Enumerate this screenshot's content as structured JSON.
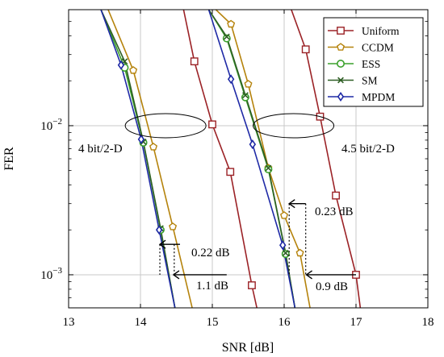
{
  "chart_data": {
    "type": "line",
    "xlabel": "SNR [dB]",
    "ylabel": "FER",
    "xlim": [
      13,
      18
    ],
    "ylim": [
      0.0006,
      0.06
    ],
    "yscale": "log",
    "grid": true,
    "legend_position": "top-right",
    "x_ticks": [
      "13",
      "14",
      "15",
      "16",
      "17",
      "18"
    ],
    "y_ticks": [
      {
        "value": 0.01,
        "base": "10",
        "exp": "−2"
      },
      {
        "value": 0.001,
        "base": "10",
        "exp": "−3"
      }
    ],
    "series": [
      {
        "name": "Uniform",
        "color": "#9b2226",
        "marker": "square",
        "segments": [
          [
            [
              14.6,
              0.06
            ],
            [
              14.75,
              0.027
            ],
            [
              15.0,
              0.0102
            ],
            [
              15.25,
              0.0049
            ],
            [
              15.55,
              0.00085
            ],
            [
              15.62,
              0.0006
            ]
          ],
          [
            [
              16.1,
              0.06
            ],
            [
              16.3,
              0.0325
            ],
            [
              16.5,
              0.0115
            ],
            [
              16.72,
              0.0034
            ],
            [
              17.0,
              0.001
            ],
            [
              17.06,
              0.0006
            ]
          ]
        ]
      },
      {
        "name": "CCDM",
        "color": "#b5830c",
        "marker": "pentagon",
        "segments": [
          [
            [
              13.55,
              0.06
            ],
            [
              13.9,
              0.0235
            ],
            [
              14.18,
              0.0072
            ],
            [
              14.45,
              0.0021
            ],
            [
              14.72,
              0.0006
            ]
          ],
          [
            [
              15.05,
              0.06
            ],
            [
              15.26,
              0.048
            ],
            [
              15.5,
              0.019
            ],
            [
              15.78,
              0.0052
            ],
            [
              16.0,
              0.0025
            ],
            [
              16.22,
              0.0014
            ],
            [
              16.36,
              0.0006
            ]
          ]
        ]
      },
      {
        "name": "ESS",
        "color": "#3aa02b",
        "marker": "circle",
        "segments": [
          [
            [
              13.45,
              0.06
            ],
            [
              13.78,
              0.0245
            ],
            [
              14.04,
              0.0077
            ],
            [
              14.28,
              0.002
            ],
            [
              14.48,
              0.0006
            ]
          ],
          [
            [
              14.95,
              0.06
            ],
            [
              15.2,
              0.0385
            ],
            [
              15.46,
              0.0155
            ],
            [
              15.78,
              0.0051
            ],
            [
              16.02,
              0.00138
            ],
            [
              16.15,
              0.0006
            ]
          ]
        ]
      },
      {
        "name": "SM",
        "color": "#2e5e24",
        "marker": "cross",
        "segments": [
          [
            [
              13.45,
              0.06
            ],
            [
              13.78,
              0.027
            ],
            [
              14.04,
              0.0078
            ],
            [
              14.28,
              0.00205
            ],
            [
              14.48,
              0.0006
            ]
          ],
          [
            [
              14.95,
              0.06
            ],
            [
              15.2,
              0.0395
            ],
            [
              15.46,
              0.016
            ],
            [
              15.78,
              0.0052
            ],
            [
              16.02,
              0.0014
            ],
            [
              16.15,
              0.0006
            ]
          ]
        ]
      },
      {
        "name": "MPDM",
        "color": "#1f2aa6",
        "marker": "diamond",
        "segments": [
          [
            [
              13.45,
              0.06
            ],
            [
              13.73,
              0.0255
            ],
            [
              14.01,
              0.0081
            ],
            [
              14.26,
              0.002
            ],
            [
              14.48,
              0.0006
            ]
          ],
          [
            [
              14.95,
              0.06
            ],
            [
              15.26,
              0.0205
            ],
            [
              15.56,
              0.0075
            ],
            [
              15.98,
              0.00158
            ],
            [
              16.15,
              0.0006
            ]
          ]
        ]
      }
    ],
    "group_labels": [
      "4 bit/2-D",
      "4.5 bit/2-D"
    ],
    "annotations": [
      "0.22 dB",
      "1.1 dB",
      "0.23 dB",
      "0.9 dB"
    ]
  }
}
